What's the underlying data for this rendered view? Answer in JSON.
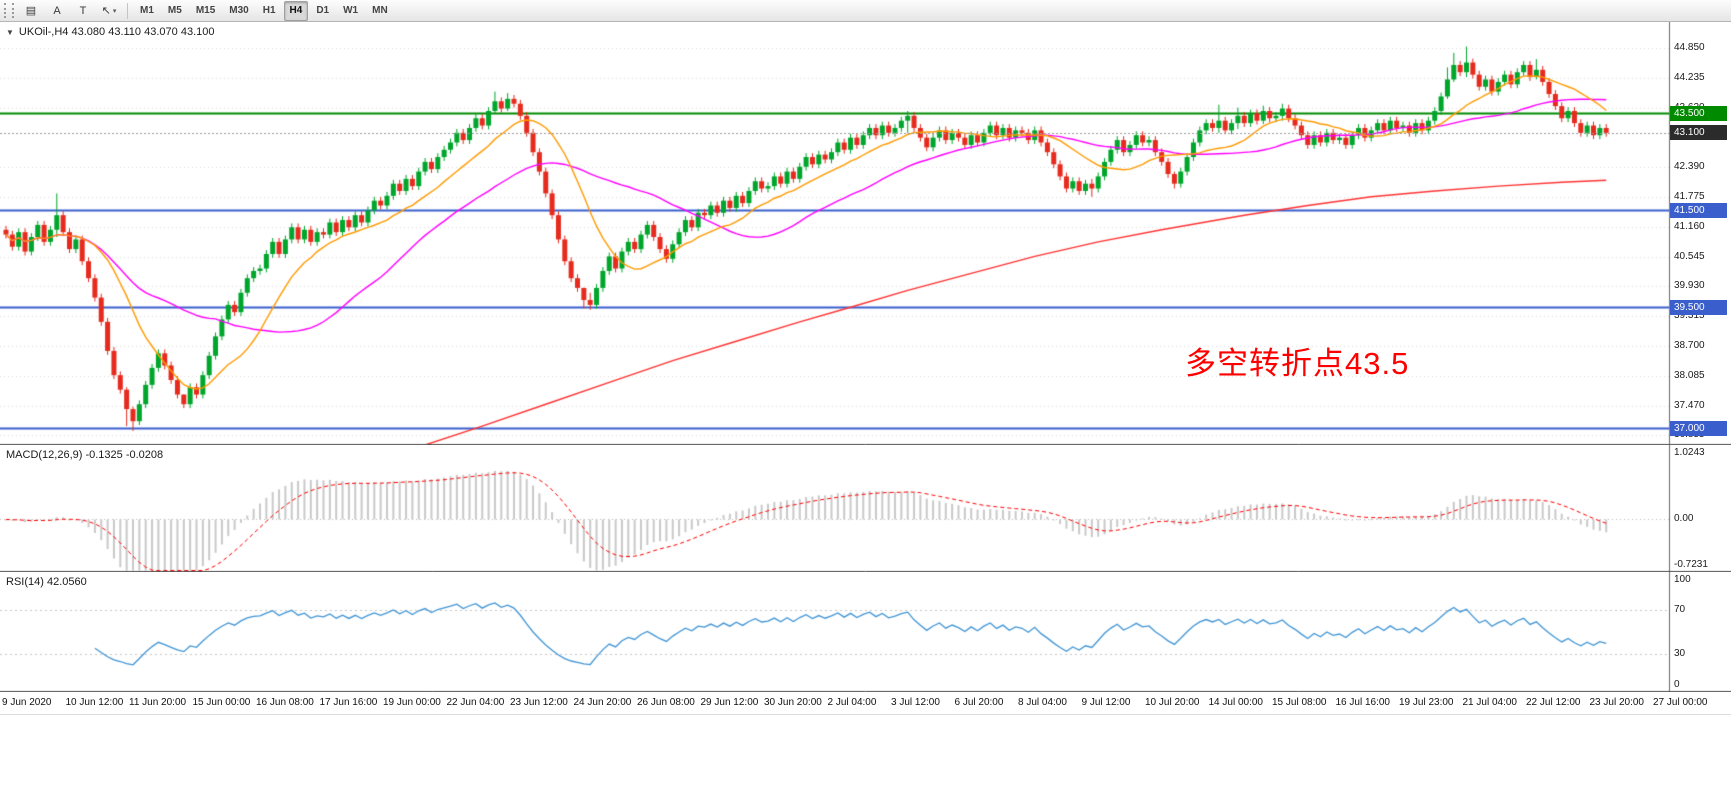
{
  "toolbar": {
    "tool_buttons": [
      {
        "name": "lines-tool",
        "glyph": "▤"
      },
      {
        "name": "text-label-tool",
        "glyph": "A"
      },
      {
        "name": "text-tool",
        "glyph": "T"
      },
      {
        "name": "arrows-tool",
        "glyph": "↖",
        "caret": true
      }
    ],
    "timeframes": [
      "M1",
      "M5",
      "M15",
      "M30",
      "H1",
      "H4",
      "D1",
      "W1",
      "MN"
    ],
    "active_timeframe": "H4"
  },
  "chart": {
    "symbol_period": "UKOil-,H4",
    "open": "43.080",
    "high": "43.110",
    "low": "43.070",
    "close": "43.100"
  },
  "panels": {
    "macd_label": "MACD(12,26,9) -0.1325 -0.0208",
    "rsi_label": "RSI(14) 42.0560"
  },
  "chart_data": {
    "type": "candlestick",
    "title": "UKOil- H4",
    "ylim": [
      36.659,
      45.386
    ],
    "price_grid": [
      44.85,
      44.235,
      43.62,
      42.39,
      41.775,
      41.16,
      40.545,
      39.93,
      39.315,
      38.7,
      38.085,
      37.47,
      36.855
    ],
    "x_tick_labels": [
      "9 Jun 2020",
      "10 Jun 12:00",
      "11 Jun 20:00",
      "15 Jun 00:00",
      "16 Jun 08:00",
      "17 Jun 16:00",
      "19 Jun 00:00",
      "22 Jun 04:00",
      "23 Jun 12:00",
      "24 Jun 20:00",
      "26 Jun 08:00",
      "29 Jun 12:00",
      "30 Jun 20:00",
      "2 Jul 04:00",
      "3 Jul 12:00",
      "6 Jul 20:00",
      "8 Jul 04:00",
      "9 Jul 12:00",
      "10 Jul 20:00",
      "14 Jul 00:00",
      "15 Jul 08:00",
      "16 Jul 16:00",
      "19 Jul 23:00",
      "21 Jul 04:00",
      "22 Jul 12:00",
      "23 Jul 20:00",
      "27 Jul 00:00"
    ],
    "candles": {
      "first_open": 41.1,
      "wick_margin": 0.08,
      "closes": [
        41.0,
        40.75,
        41.05,
        40.65,
        40.95,
        41.2,
        40.85,
        41.1,
        41.4,
        41.05,
        40.7,
        40.9,
        40.45,
        40.1,
        39.7,
        39.2,
        38.6,
        38.1,
        37.8,
        37.4,
        37.15,
        37.5,
        37.9,
        38.25,
        38.55,
        38.3,
        38.0,
        37.7,
        37.5,
        37.85,
        37.7,
        38.1,
        38.5,
        38.9,
        39.25,
        39.55,
        39.4,
        39.8,
        40.1,
        40.25,
        40.3,
        40.6,
        40.85,
        40.6,
        40.9,
        41.15,
        40.9,
        41.1,
        40.85,
        41.05,
        41.0,
        41.25,
        41.05,
        41.3,
        41.15,
        41.4,
        41.25,
        41.5,
        41.7,
        41.6,
        41.8,
        42.05,
        41.9,
        42.15,
        42.0,
        42.3,
        42.5,
        42.35,
        42.6,
        42.75,
        42.9,
        43.1,
        42.95,
        43.2,
        43.4,
        43.25,
        43.55,
        43.75,
        43.6,
        43.8,
        43.7,
        43.45,
        43.1,
        42.7,
        42.3,
        41.85,
        41.4,
        40.9,
        40.45,
        40.1,
        39.9,
        39.65,
        39.55,
        39.9,
        40.25,
        40.55,
        40.3,
        40.65,
        40.85,
        40.7,
        41.0,
        41.2,
        40.95,
        40.7,
        40.5,
        40.8,
        41.05,
        41.3,
        41.15,
        41.45,
        41.4,
        41.6,
        41.45,
        41.7,
        41.55,
        41.8,
        41.65,
        41.9,
        42.1,
        41.95,
        42.0,
        42.2,
        42.05,
        42.3,
        42.15,
        42.4,
        42.6,
        42.45,
        42.65,
        42.55,
        42.7,
        42.9,
        42.75,
        43.0,
        42.85,
        43.05,
        43.2,
        43.05,
        43.25,
        43.1,
        43.2,
        43.35,
        43.45,
        43.2,
        43.0,
        42.8,
        43.0,
        43.15,
        42.95,
        43.1,
        43.0,
        42.85,
        43.05,
        42.9,
        43.1,
        43.25,
        43.05,
        43.2,
        43.0,
        43.15,
        43.1,
        42.95,
        43.15,
        42.9,
        42.7,
        42.45,
        42.2,
        41.95,
        42.1,
        41.9,
        42.05,
        41.95,
        42.2,
        42.5,
        42.75,
        42.95,
        42.7,
        42.85,
        43.05,
        42.9,
        42.95,
        42.7,
        42.5,
        42.25,
        42.05,
        42.3,
        42.6,
        42.9,
        43.15,
        43.3,
        43.2,
        43.35,
        43.15,
        43.3,
        43.45,
        43.3,
        43.5,
        43.35,
        43.55,
        43.4,
        43.45,
        43.6,
        43.4,
        43.25,
        43.05,
        42.85,
        43.05,
        42.9,
        43.1,
        42.95,
        43.0,
        42.85,
        43.05,
        43.2,
        43.0,
        43.15,
        43.3,
        43.15,
        43.35,
        43.2,
        43.25,
        43.1,
        43.3,
        43.15,
        43.35,
        43.55,
        43.85,
        44.2,
        44.5,
        44.35,
        44.55,
        44.3,
        44.05,
        44.2,
        43.95,
        44.15,
        44.3,
        44.1,
        44.35,
        44.5,
        44.25,
        44.4,
        44.15,
        43.9,
        43.65,
        43.4,
        43.55,
        43.3,
        43.1,
        43.25,
        43.05,
        43.2,
        43.1
      ],
      "wick_overrides": {
        "8": [
          41.85,
          40.95
        ],
        "19": [
          37.85,
          37.05
        ],
        "20": [
          37.45,
          36.95
        ],
        "28": [
          37.7,
          37.42
        ],
        "77": [
          43.95,
          43.5
        ],
        "79": [
          43.92,
          43.55
        ],
        "91": [
          39.9,
          39.48
        ],
        "92": [
          39.8,
          39.45
        ],
        "142": [
          43.55,
          43.1
        ],
        "171": [
          42.15,
          41.78
        ],
        "184": [
          42.3,
          41.95
        ],
        "191": [
          43.68,
          43.1
        ],
        "194": [
          43.62,
          43.18
        ],
        "198": [
          43.66,
          43.28
        ],
        "201": [
          43.7,
          43.35
        ],
        "227": [
          44.45,
          43.8
        ],
        "228": [
          44.75,
          44.15
        ],
        "230": [
          44.88,
          44.25
        ],
        "241": [
          44.62,
          44.2
        ]
      }
    },
    "overlays": {
      "ma_fast": {
        "name": "ma-fast",
        "type": "sma",
        "period": 13,
        "color": "#FF9A00"
      },
      "ma_mid": {
        "name": "ma-mid",
        "type": "sma",
        "period": 34,
        "color": "#FF00FF"
      },
      "ma_slow": {
        "name": "ma-slow",
        "color": "#FF3333",
        "points": [
          [
            66,
            36.66
          ],
          [
            75,
            37.05
          ],
          [
            85,
            37.5
          ],
          [
            95,
            37.95
          ],
          [
            105,
            38.4
          ],
          [
            115,
            38.8
          ],
          [
            125,
            39.2
          ],
          [
            133,
            39.5
          ],
          [
            142,
            39.85
          ],
          [
            152,
            40.2
          ],
          [
            162,
            40.55
          ],
          [
            172,
            40.85
          ],
          [
            182,
            41.1
          ],
          [
            195,
            41.4
          ],
          [
            205,
            41.6
          ],
          [
            215,
            41.78
          ],
          [
            225,
            41.9
          ],
          [
            235,
            42.0
          ],
          [
            245,
            42.08
          ],
          [
            252,
            42.12
          ]
        ]
      }
    },
    "hlines": [
      {
        "price": 43.5,
        "color": "#008A00",
        "width": 2,
        "badge": "43.500"
      },
      {
        "price": 41.5,
        "color": "#3A5FCD",
        "width": 2,
        "badge": "41.500"
      },
      {
        "price": 39.5,
        "color": "#3A5FCD",
        "width": 2,
        "badge": "39.500"
      },
      {
        "price": 37.0,
        "color": "#3A5FCD",
        "width": 2,
        "badge": "37.000"
      }
    ],
    "bid": {
      "price": 43.1,
      "badge": "43.100",
      "badge_color": "#2B2B2B",
      "line_color": "#999999"
    },
    "macd": {
      "fast": 12,
      "slow": 26,
      "signal_period": 9,
      "ylim": [
        -0.7231,
        1.0243
      ],
      "hist_color": "#C9C9C9",
      "signal_color": "#FF0000",
      "axis_labels": [
        "1.0243",
        "0.00",
        "-0.7231"
      ],
      "current_values": [
        "-0.1325",
        "-0.0208"
      ]
    },
    "rsi": {
      "period": 14,
      "ylim": [
        0,
        100
      ],
      "levels": [
        70,
        30
      ],
      "color": "#4095D5",
      "current": "42.0560",
      "axis_labels": [
        "100",
        "70",
        "30",
        "0"
      ]
    },
    "bull_color": "#00A62C",
    "bear_color": "#E62B1E",
    "grid_color": "#DCDCDC",
    "annotation": {
      "text": "多空转折点43.5",
      "color": "#FF0000"
    }
  }
}
